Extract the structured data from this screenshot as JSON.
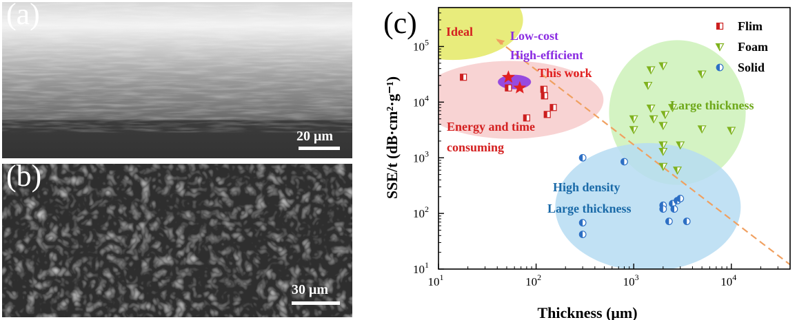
{
  "panels": {
    "a": {
      "label": "(a)",
      "scale_label": "20 μm"
    },
    "b": {
      "label": "(b)",
      "scale_label": "30 μm"
    },
    "c": {
      "label": "(c)"
    }
  },
  "colors": {
    "film": "#cc1f1f",
    "foam": "#7fb21e",
    "solid": "#2d6fc4",
    "ideal_region": "#e6ea6e",
    "film_region": "#f6c8c8",
    "foam_region": "#c9f0b4",
    "solid_region": "#b6dcf2",
    "this_work_region": "#8c3be0",
    "trend_line": "#f0a060",
    "star": "#e02020"
  },
  "chart_data": {
    "type": "scatter",
    "xlabel": "Thickness (μm)",
    "ylabel": "SSE/t (dB·cm²·g⁻¹)",
    "x_scale": "log",
    "y_scale": "log",
    "xlim": [
      10,
      40000
    ],
    "ylim": [
      10,
      500000
    ],
    "x_ticks": [
      {
        "v": 10,
        "base": "10",
        "exp": "1"
      },
      {
        "v": 100,
        "base": "10",
        "exp": "2"
      },
      {
        "v": 1000,
        "base": "10",
        "exp": "3"
      },
      {
        "v": 10000,
        "base": "10",
        "exp": "4"
      }
    ],
    "y_ticks": [
      {
        "v": 10,
        "base": "10",
        "exp": "1"
      },
      {
        "v": 100,
        "base": "10",
        "exp": "2"
      },
      {
        "v": 1000,
        "base": "10",
        "exp": "3"
      },
      {
        "v": 10000,
        "base": "10",
        "exp": "4"
      },
      {
        "v": 100000,
        "base": "10",
        "exp": "5"
      }
    ],
    "grid": false,
    "legend_position": "top-right",
    "series": [
      {
        "name": "Flim",
        "marker": "square",
        "x": [
          18,
          52,
          80,
          120,
          122,
          122,
          130,
          150
        ],
        "y": [
          28000,
          18000,
          5200,
          17000,
          13000,
          13000,
          6000,
          8000
        ]
      },
      {
        "name": "Foam",
        "marker": "triangle",
        "x": [
          1000,
          1000,
          1400,
          1500,
          1500,
          1600,
          2000,
          2000,
          2000,
          2000,
          2000,
          2100,
          2500,
          2800,
          3000,
          5000,
          5000,
          10000
        ],
        "y": [
          5000,
          3200,
          20000,
          38000,
          7800,
          5000,
          45000,
          3800,
          1700,
          1300,
          700,
          6000,
          8000,
          600,
          1700,
          32000,
          3300,
          3100
        ]
      },
      {
        "name": "Solid",
        "marker": "circle",
        "x": [
          300,
          300,
          300,
          800,
          2000,
          2000,
          2300,
          2500,
          2600,
          2800,
          3000,
          3500
        ],
        "y": [
          1000,
          68,
          42,
          850,
          140,
          120,
          72,
          150,
          120,
          170,
          185,
          72
        ]
      }
    ],
    "this_work": {
      "label": "This work",
      "x": [
        52,
        68
      ],
      "y": [
        28000,
        18000
      ]
    },
    "trend_line": {
      "x": [
        40,
        40000
      ],
      "y": [
        130000,
        12
      ]
    },
    "annotations": [
      {
        "text": "Ideal",
        "color": "#d42020"
      },
      {
        "text": "Low-cost",
        "color": "#8a2be2"
      },
      {
        "text": "High-efficient",
        "color": "#8a2be2"
      },
      {
        "text": "This work",
        "color": "#e01c1c"
      },
      {
        "text": "Energy and time",
        "color": "#d42020"
      },
      {
        "text": "consuming",
        "color": "#d42020"
      },
      {
        "text": "Large thickness",
        "color": "#6ea81a"
      },
      {
        "text": "High density",
        "color": "#1a6aa8"
      },
      {
        "text": "Large thickness",
        "color": "#1a6aa8"
      }
    ],
    "regions": [
      {
        "kind": "ideal",
        "cx": 14,
        "cy": 300000,
        "rx_dec": 0.72,
        "ry_dec": 0.72,
        "color_key": "ideal_region",
        "opacity": 0.9
      },
      {
        "kind": "film",
        "cx": 55,
        "cy": 11000,
        "rx_dec": 0.95,
        "ry_dec": 0.7,
        "color_key": "film_region",
        "opacity": 0.8
      },
      {
        "kind": "foam",
        "cx": 2800,
        "cy": 6500,
        "rx_dec": 0.7,
        "ry_dec": 1.3,
        "color_key": "foam_region",
        "opacity": 0.8
      },
      {
        "kind": "solid",
        "cx": 1400,
        "cy": 130,
        "rx_dec": 0.95,
        "ry_dec": 1.15,
        "color_key": "solid_region",
        "opacity": 0.85
      },
      {
        "kind": "this_work",
        "cx": 60,
        "cy": 23000,
        "rx_dec": 0.17,
        "ry_dec": 0.13,
        "color_key": "this_work_region",
        "opacity": 0.9
      }
    ]
  }
}
